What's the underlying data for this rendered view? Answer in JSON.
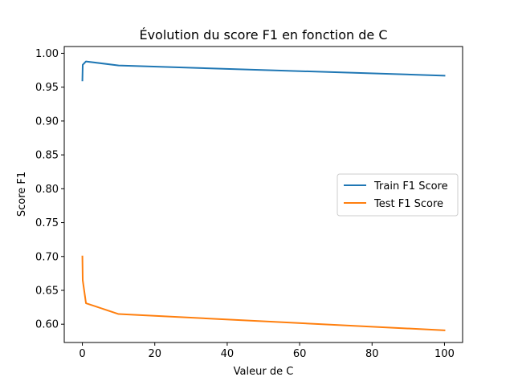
{
  "chart_data": {
    "type": "line",
    "title": "Évolution du score F1 en fonction de C",
    "xlabel": "Valeur de C",
    "ylabel": "Score F1",
    "xlim": [
      -5,
      105
    ],
    "ylim": [
      0.573,
      1.01
    ],
    "x_ticks": [
      0,
      20,
      40,
      60,
      80,
      100
    ],
    "y_ticks": [
      0.6,
      0.65,
      0.7,
      0.75,
      0.8,
      0.85,
      0.9,
      0.95,
      1.0
    ],
    "x_tick_labels": [
      "0",
      "20",
      "40",
      "60",
      "80",
      "100"
    ],
    "y_tick_labels": [
      "0.60",
      "0.65",
      "0.70",
      "0.75",
      "0.80",
      "0.85",
      "0.90",
      "0.95",
      "1.00"
    ],
    "grid": false,
    "legend_position": "center-right",
    "series": [
      {
        "name": "Train F1 Score",
        "color": "#1f77b4",
        "x": [
          0.01,
          0.1,
          1,
          10,
          100
        ],
        "y": [
          0.96,
          0.983,
          0.988,
          0.982,
          0.967
        ]
      },
      {
        "name": "Test F1 Score",
        "color": "#ff7f0e",
        "x": [
          0.01,
          0.1,
          1,
          10,
          100
        ],
        "y": [
          0.7,
          0.665,
          0.631,
          0.615,
          0.591
        ]
      }
    ]
  }
}
